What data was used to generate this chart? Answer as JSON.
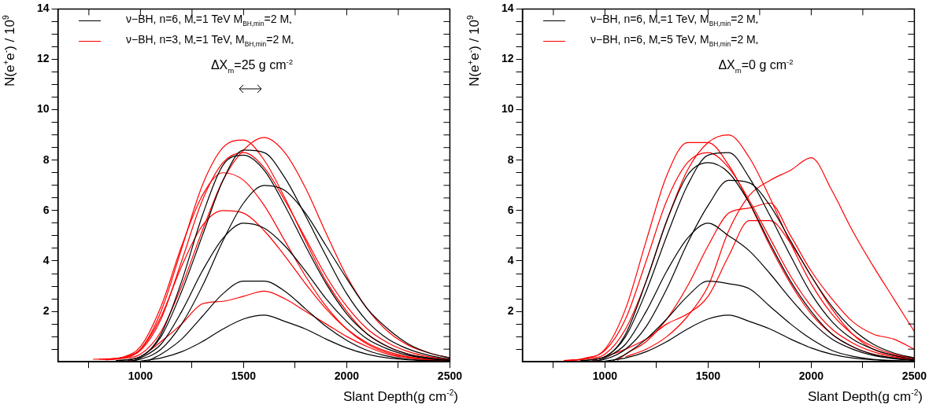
{
  "chart_data": [
    {
      "type": "line",
      "xlabel": "Slant Depth(g cm$^{-2}$)",
      "ylabel": "N(e$^{+}$e$^{-}$) / 10$^{9}$",
      "legend": "top left",
      "marker": "none",
      "line_style": "solid",
      "annotations": [
        "ΔX$_{m}$=25 g cm$^{-2}$"
      ],
      "xlim": [
        600,
        2500
      ],
      "xticks": [
        {
          "value": 750,
          "label": null
        },
        1000,
        {
          "value": 1250,
          "label": null
        },
        1500,
        {
          "value": 1750,
          "label": null
        },
        2000,
        {
          "value": 2250,
          "label": null
        },
        2500
      ],
      "ylim": [
        0,
        14
      ],
      "yticks": [
        {
          "value": 0.5,
          "label": null
        },
        {
          "value": 1,
          "label": null
        },
        {
          "value": 1.5,
          "label": null
        },
        2,
        {
          "value": 2.5,
          "label": null
        },
        {
          "value": 3,
          "label": null
        },
        {
          "value": 3.5,
          "label": null
        },
        4,
        {
          "value": 4.5,
          "label": null
        },
        {
          "value": 5,
          "label": null
        },
        {
          "value": 5.5,
          "label": null
        },
        6,
        {
          "value": 6.5,
          "label": null
        },
        {
          "value": 7,
          "label": null
        },
        {
          "value": 7.5,
          "label": null
        },
        8,
        {
          "value": 8.5,
          "label": null
        },
        {
          "value": 9,
          "label": null
        },
        {
          "value": 9.5,
          "label": null
        },
        10,
        {
          "value": 10.5,
          "label": null
        },
        {
          "value": 11,
          "label": null
        },
        {
          "value": 11.5,
          "label": null
        },
        12,
        {
          "value": 12.5,
          "label": null
        },
        {
          "value": 13,
          "label": null
        },
        {
          "value": 13.5,
          "label": null
        },
        14
      ],
      "series": [
        {
          "name": "ν−BH, n=6, M$_{*}$=1 TeV M$_{BH,min}$=2 M$_{*}$",
          "color": "#000000",
          "x": [
            900,
            1000,
            1100,
            1200,
            1300,
            1400,
            1500,
            1600,
            1700,
            1800,
            1900,
            2000,
            2100,
            2200,
            2300,
            2400,
            2500
          ],
          "values": [
            0.05,
            0.2,
            1.0,
            2.8,
            5.0,
            7.2,
            8.4,
            8.3,
            7.3,
            5.8,
            4.2,
            2.7,
            1.6,
            0.9,
            0.5,
            0.25,
            0.1
          ]
        },
        {
          "color": "#000000",
          "x": [
            930,
            1000,
            1100,
            1200,
            1300,
            1400,
            1500,
            1600,
            1700,
            1800,
            1900,
            2000,
            2100,
            2200,
            2300,
            2400,
            2500
          ],
          "values": [
            0.02,
            0.1,
            0.5,
            1.5,
            3.0,
            4.8,
            6.3,
            7.0,
            6.8,
            5.9,
            4.6,
            3.3,
            2.1,
            1.3,
            0.7,
            0.35,
            0.15
          ]
        },
        {
          "color": "#000000",
          "x": [
            1000,
            1100,
            1200,
            1300,
            1400,
            1500,
            1600,
            1700,
            1800,
            1900,
            2000,
            2100,
            2200,
            2300,
            2400,
            2500
          ],
          "values": [
            0.03,
            0.15,
            0.4,
            0.8,
            1.3,
            1.7,
            1.85,
            1.6,
            1.3,
            0.9,
            0.55,
            0.3,
            0.15,
            0.08,
            0.04,
            0.02
          ]
        },
        {
          "color": "#000000",
          "x": [
            1040,
            1100,
            1200,
            1300,
            1400,
            1500,
            1600,
            1700,
            1800,
            1900,
            2000,
            2100,
            2200,
            2300,
            2400,
            2500
          ],
          "values": [
            0.05,
            0.3,
            0.9,
            1.8,
            2.7,
            3.2,
            3.2,
            2.8,
            2.1,
            1.4,
            0.85,
            0.45,
            0.22,
            0.1,
            0.05,
            0.02
          ]
        },
        {
          "color": "#000000",
          "x": [
            960,
            1000,
            1100,
            1200,
            1300,
            1400,
            1500,
            1600,
            1700,
            1800,
            1900,
            2000,
            2100,
            2200,
            2300,
            2400,
            2500
          ],
          "values": [
            0.03,
            0.15,
            0.7,
            2.0,
            3.6,
            4.9,
            5.5,
            5.3,
            4.6,
            3.6,
            2.5,
            1.6,
            0.9,
            0.5,
            0.25,
            0.12,
            0.05
          ]
        },
        {
          "color": "#000000",
          "x": [
            880,
            1000,
            1100,
            1200,
            1300,
            1400,
            1500,
            1600,
            1700,
            1800,
            1900,
            2000,
            2100,
            2200,
            2300,
            2400,
            2500
          ],
          "values": [
            0.04,
            0.2,
            1.1,
            3.2,
            5.8,
            7.8,
            8.2,
            7.6,
            6.2,
            4.6,
            3.1,
            1.9,
            1.1,
            0.6,
            0.3,
            0.15,
            0.06
          ]
        },
        {
          "name": "ν−BH, n=3, M$_{*}$=1 TeV, M$_{BH,min}$=2 M$_{*}$",
          "color": "#ff0000",
          "x": [
            800,
            900,
            1000,
            1100,
            1200,
            1300,
            1400,
            1500,
            1600,
            1700,
            1800,
            1900,
            2000,
            2100,
            2200,
            2300,
            2400,
            2500
          ],
          "values": [
            0.1,
            0.15,
            0.5,
            2.0,
            4.5,
            7.0,
            8.5,
            8.8,
            8.0,
            6.5,
            4.8,
            3.2,
            2.0,
            1.1,
            0.6,
            0.3,
            0.15,
            0.07
          ]
        },
        {
          "color": "#ff0000",
          "x": [
            830,
            900,
            1000,
            1100,
            1200,
            1300,
            1400,
            1500,
            1600,
            1700,
            1800,
            1900,
            2000,
            2100,
            2200,
            2300,
            2400,
            2500
          ],
          "values": [
            0.08,
            0.12,
            0.3,
            1.2,
            3.0,
            5.2,
            7.2,
            8.4,
            8.9,
            8.3,
            6.9,
            5.1,
            3.4,
            2.1,
            1.2,
            0.65,
            0.35,
            0.15
          ]
        },
        {
          "color": "#ff0000",
          "x": [
            860,
            900,
            1000,
            1100,
            1200,
            1300,
            1400,
            1500,
            1600,
            1700,
            1800,
            1900,
            2000,
            2100,
            2200,
            2300,
            2400,
            2500
          ],
          "values": [
            0.1,
            0.15,
            0.6,
            2.2,
            4.6,
            6.6,
            7.5,
            7.2,
            6.2,
            4.8,
            3.4,
            2.2,
            1.3,
            0.7,
            0.35,
            0.17,
            0.08,
            0.04
          ]
        },
        {
          "color": "#ff0000",
          "x": [
            940,
            1000,
            1100,
            1200,
            1300,
            1400,
            1500,
            1600,
            1700,
            1800,
            1900,
            2000,
            2100,
            2200,
            2300,
            2400,
            2500
          ],
          "values": [
            0.05,
            0.2,
            0.8,
            1.5,
            2.3,
            2.4,
            2.6,
            2.8,
            2.5,
            2.0,
            1.5,
            1.0,
            0.6,
            0.3,
            0.15,
            0.08,
            0.04
          ]
        },
        {
          "color": "#ff0000",
          "x": [
            770,
            900,
            1000,
            1100,
            1200,
            1300,
            1400,
            1500,
            1600,
            1700,
            1800,
            1900,
            2000,
            2100,
            2200,
            2300,
            2400,
            2500
          ],
          "values": [
            0.1,
            0.15,
            0.5,
            1.8,
            3.8,
            5.4,
            6.0,
            5.9,
            5.2,
            4.2,
            3.1,
            2.1,
            1.3,
            0.75,
            0.4,
            0.2,
            0.1,
            0.05
          ]
        },
        {
          "color": "#ff0000",
          "x": [
            815,
            900,
            1000,
            1100,
            1200,
            1300,
            1400,
            1500,
            1600,
            1700,
            1800,
            1900,
            2000,
            2100,
            2200,
            2300,
            2400,
            2500
          ],
          "values": [
            0.1,
            0.14,
            0.45,
            1.7,
            4.0,
            6.4,
            7.9,
            8.3,
            7.7,
            6.4,
            4.9,
            3.4,
            2.2,
            1.3,
            0.75,
            0.4,
            0.2,
            0.1
          ]
        }
      ]
    },
    {
      "type": "line",
      "xlabel": "Slant Depth(g cm$^{-2}$)",
      "ylabel": "N(e$^{+}$e$^{-}$) / 10$^{9}$",
      "legend": "top left",
      "marker": "none",
      "line_style": "solid",
      "annotations": [
        "ΔX$_{m}$=0 g cm$^{-2}$"
      ],
      "xlim": [
        600,
        2500
      ],
      "xticks": [
        {
          "value": 750,
          "label": null
        },
        1000,
        {
          "value": 1250,
          "label": null
        },
        1500,
        {
          "value": 1750,
          "label": null
        },
        2000,
        {
          "value": 2250,
          "label": null
        },
        2500
      ],
      "ylim": [
        0,
        14
      ],
      "yticks": [
        {
          "value": 0.5,
          "label": null
        },
        {
          "value": 1,
          "label": null
        },
        {
          "value": 1.5,
          "label": null
        },
        2,
        {
          "value": 2.5,
          "label": null
        },
        {
          "value": 3,
          "label": null
        },
        {
          "value": 3.5,
          "label": null
        },
        4,
        {
          "value": 4.5,
          "label": null
        },
        {
          "value": 5,
          "label": null
        },
        {
          "value": 5.5,
          "label": null
        },
        6,
        {
          "value": 6.5,
          "label": null
        },
        {
          "value": 7,
          "label": null
        },
        {
          "value": 7.5,
          "label": null
        },
        8,
        {
          "value": 8.5,
          "label": null
        },
        {
          "value": 9,
          "label": null
        },
        {
          "value": 9.5,
          "label": null
        },
        10,
        {
          "value": 10.5,
          "label": null
        },
        {
          "value": 11,
          "label": null
        },
        {
          "value": 11.5,
          "label": null
        },
        12,
        {
          "value": 12.5,
          "label": null
        },
        {
          "value": 13,
          "label": null
        },
        {
          "value": 13.5,
          "label": null
        },
        14
      ],
      "series": [
        {
          "name": "ν−BH, n=6, M$_{*}$=1 TeV, M$_{BH,min}$=2 M$_{*}$",
          "color": "#000000",
          "x": [
            900,
            1000,
            1100,
            1200,
            1300,
            1400,
            1500,
            1600,
            1700,
            1800,
            1900,
            2000,
            2100,
            2200,
            2300,
            2400,
            2500
          ],
          "values": [
            0.05,
            0.2,
            1.0,
            2.8,
            5.0,
            7.0,
            8.2,
            8.3,
            7.3,
            5.8,
            4.2,
            2.7,
            1.6,
            0.9,
            0.5,
            0.25,
            0.1
          ]
        },
        {
          "color": "#000000",
          "x": [
            930,
            1000,
            1100,
            1200,
            1300,
            1400,
            1500,
            1600,
            1700,
            1800,
            1900,
            2000,
            2100,
            2200,
            2300,
            2400,
            2500
          ],
          "values": [
            0.02,
            0.1,
            0.5,
            1.4,
            2.9,
            4.7,
            6.2,
            7.2,
            7.1,
            6.2,
            4.8,
            3.4,
            2.2,
            1.3,
            0.7,
            0.35,
            0.15
          ]
        },
        {
          "color": "#000000",
          "x": [
            1000,
            1100,
            1200,
            1300,
            1400,
            1500,
            1600,
            1700,
            1800,
            1900,
            2000,
            2100,
            2200,
            2300,
            2400,
            2500
          ],
          "values": [
            0.03,
            0.15,
            0.4,
            0.8,
            1.3,
            1.7,
            1.85,
            1.6,
            1.3,
            0.9,
            0.55,
            0.3,
            0.15,
            0.08,
            0.04,
            0.02
          ]
        },
        {
          "color": "#000000",
          "x": [
            1040,
            1100,
            1200,
            1300,
            1400,
            1500,
            1600,
            1700,
            1800,
            1900,
            2000,
            2100,
            2200,
            2300,
            2400,
            2500
          ],
          "values": [
            0.05,
            0.3,
            0.9,
            1.7,
            2.6,
            3.2,
            3.1,
            2.9,
            2.2,
            1.5,
            0.9,
            0.45,
            0.22,
            0.1,
            0.05,
            0.02
          ]
        },
        {
          "color": "#000000",
          "x": [
            960,
            1000,
            1100,
            1200,
            1300,
            1400,
            1500,
            1600,
            1700,
            1800,
            1900,
            2000,
            2100,
            2200,
            2300,
            2400,
            2500
          ],
          "values": [
            0.03,
            0.15,
            0.7,
            2.0,
            3.6,
            4.9,
            5.5,
            5.0,
            4.4,
            3.5,
            2.5,
            1.6,
            0.9,
            0.5,
            0.25,
            0.12,
            0.05
          ]
        },
        {
          "color": "#000000",
          "x": [
            880,
            1000,
            1100,
            1200,
            1300,
            1400,
            1500,
            1600,
            1700,
            1800,
            1900,
            2000,
            2100,
            2200,
            2300,
            2400,
            2500
          ],
          "values": [
            0.04,
            0.2,
            1.1,
            3.2,
            5.6,
            7.4,
            7.9,
            7.5,
            6.3,
            4.7,
            3.2,
            2.0,
            1.1,
            0.6,
            0.3,
            0.15,
            0.06
          ]
        },
        {
          "name": "ν−BH,  n=6, M$_{*}$=5 TeV, M$_{BH,min}$=2 M$_{*}$",
          "color": "#ff0000",
          "x": [
            800,
            900,
            1000,
            1100,
            1200,
            1300,
            1400,
            1500,
            1600,
            1700,
            1800,
            1900,
            2000,
            2100,
            2200,
            2300,
            2400,
            2500
          ],
          "values": [
            0.05,
            0.12,
            0.5,
            2.1,
            4.8,
            7.4,
            8.7,
            8.7,
            7.8,
            6.3,
            4.6,
            3.1,
            1.9,
            1.1,
            0.6,
            0.3,
            0.15,
            0.07
          ]
        },
        {
          "color": "#ff0000",
          "x": [
            830,
            900,
            1000,
            1100,
            1200,
            1300,
            1400,
            1500,
            1600,
            1700,
            1800,
            1900,
            2000,
            2100,
            2200,
            2300,
            2400,
            2500
          ],
          "values": [
            0.05,
            0.1,
            0.3,
            1.3,
            3.2,
            5.6,
            7.6,
            8.7,
            9.0,
            8.1,
            6.5,
            4.7,
            3.1,
            1.9,
            1.1,
            0.6,
            0.3,
            0.14
          ]
        },
        {
          "color": "#ff0000",
          "x": [
            1100,
            1200,
            1300,
            1400,
            1500,
            1600,
            1700,
            1800,
            1900,
            2000,
            2100,
            2200,
            2300,
            2400,
            2500
          ],
          "values": [
            0.2,
            0.5,
            1.0,
            1.8,
            3.0,
            5.2,
            6.6,
            7.2,
            7.6,
            8.1,
            6.8,
            5.2,
            3.8,
            2.5,
            1.2
          ]
        },
        {
          "color": "#ff0000",
          "x": [
            1060,
            1100,
            1200,
            1300,
            1400,
            1500,
            1600,
            1700,
            1800,
            1900,
            2000,
            2100,
            2200,
            2300,
            2400,
            2500
          ],
          "values": [
            0.05,
            0.3,
            0.8,
            1.7,
            3.0,
            4.6,
            5.9,
            6.1,
            6.3,
            5.0,
            3.6,
            2.5,
            1.6,
            1.1,
            0.9,
            0.5
          ]
        },
        {
          "color": "#ff0000",
          "x": [
            940,
            1000,
            1100,
            1200,
            1300,
            1400,
            1500,
            1600,
            1700,
            1800,
            1900,
            2000,
            2100,
            2200,
            2300,
            2400,
            2500
          ],
          "values": [
            0.05,
            0.2,
            0.5,
            0.9,
            1.5,
            1.9,
            2.6,
            4.2,
            5.6,
            5.6,
            4.7,
            3.4,
            2.1,
            1.1,
            0.5,
            0.25,
            0.1
          ]
        },
        {
          "color": "#ff0000",
          "x": [
            815,
            900,
            1000,
            1100,
            1200,
            1300,
            1400,
            1500,
            1600,
            1700,
            1800,
            1900,
            2000,
            2100,
            2200,
            2300,
            2400,
            2500
          ],
          "values": [
            0.05,
            0.14,
            0.45,
            1.7,
            4.0,
            6.4,
            7.9,
            8.3,
            7.7,
            6.4,
            4.9,
            3.4,
            2.2,
            1.3,
            0.75,
            0.4,
            0.2,
            0.1
          ]
        }
      ]
    }
  ]
}
